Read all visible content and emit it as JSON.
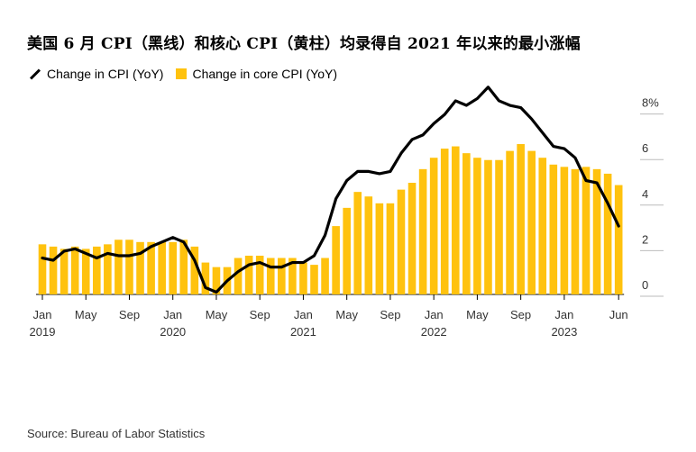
{
  "chart_data": {
    "type": "bar+line",
    "title": "美国 6 月 CPI（黑线）和核心 CPI（黄柱）均录得自 2021 年以来的最小涨幅",
    "legend": {
      "placement": "top-left",
      "line_label": "Change in CPI (YoY)",
      "bar_label": "Change in core CPI (YoY)"
    },
    "colors": {
      "bar": "#FFC20E",
      "line": "#000000"
    },
    "ylim": [
      0,
      9
    ],
    "y_ticks": [
      {
        "value": 0,
        "label": "0"
      },
      {
        "value": 2,
        "label": "2"
      },
      {
        "value": 4,
        "label": "4"
      },
      {
        "value": 6,
        "label": "6"
      },
      {
        "value": 8,
        "label": "8%"
      }
    ],
    "x_ticks": [
      {
        "month": "2019-01",
        "label": "Jan",
        "year": "2019"
      },
      {
        "month": "2019-05",
        "label": "May",
        "year": ""
      },
      {
        "month": "2019-09",
        "label": "Sep",
        "year": ""
      },
      {
        "month": "2020-01",
        "label": "Jan",
        "year": "2020"
      },
      {
        "month": "2020-05",
        "label": "May",
        "year": ""
      },
      {
        "month": "2020-09",
        "label": "Sep",
        "year": ""
      },
      {
        "month": "2021-01",
        "label": "Jan",
        "year": "2021"
      },
      {
        "month": "2021-05",
        "label": "May",
        "year": ""
      },
      {
        "month": "2021-09",
        "label": "Sep",
        "year": ""
      },
      {
        "month": "2022-01",
        "label": "Jan",
        "year": "2022"
      },
      {
        "month": "2022-05",
        "label": "May",
        "year": ""
      },
      {
        "month": "2022-09",
        "label": "Sep",
        "year": ""
      },
      {
        "month": "2023-01",
        "label": "Jan",
        "year": "2023"
      },
      {
        "month": "2023-06",
        "label": "Jun",
        "year": ""
      }
    ],
    "months": [
      "2019-01",
      "2019-02",
      "2019-03",
      "2019-04",
      "2019-05",
      "2019-06",
      "2019-07",
      "2019-08",
      "2019-09",
      "2019-10",
      "2019-11",
      "2019-12",
      "2020-01",
      "2020-02",
      "2020-03",
      "2020-04",
      "2020-05",
      "2020-06",
      "2020-07",
      "2020-08",
      "2020-09",
      "2020-10",
      "2020-11",
      "2020-12",
      "2021-01",
      "2021-02",
      "2021-03",
      "2021-04",
      "2021-05",
      "2021-06",
      "2021-07",
      "2021-08",
      "2021-09",
      "2021-10",
      "2021-11",
      "2021-12",
      "2022-01",
      "2022-02",
      "2022-03",
      "2022-04",
      "2022-05",
      "2022-06",
      "2022-07",
      "2022-08",
      "2022-09",
      "2022-10",
      "2022-11",
      "2022-12",
      "2023-01",
      "2023-02",
      "2023-03",
      "2023-04",
      "2023-05",
      "2023-06"
    ],
    "series": [
      {
        "name": "Change in CPI (YoY)",
        "kind": "line",
        "values": [
          1.6,
          1.5,
          1.9,
          2.0,
          1.8,
          1.6,
          1.8,
          1.7,
          1.7,
          1.8,
          2.1,
          2.3,
          2.5,
          2.3,
          1.5,
          0.3,
          0.1,
          0.6,
          1.0,
          1.3,
          1.4,
          1.2,
          1.2,
          1.4,
          1.4,
          1.7,
          2.6,
          4.2,
          5.0,
          5.4,
          5.4,
          5.3,
          5.4,
          6.2,
          6.8,
          7.0,
          7.5,
          7.9,
          8.5,
          8.3,
          8.6,
          9.1,
          8.5,
          8.3,
          8.2,
          7.7,
          7.1,
          6.5,
          6.4,
          6.0,
          5.0,
          4.9,
          4.0,
          3.0
        ]
      },
      {
        "name": "Change in core CPI (YoY)",
        "kind": "bar",
        "values": [
          2.2,
          2.1,
          2.0,
          2.1,
          2.0,
          2.1,
          2.2,
          2.4,
          2.4,
          2.3,
          2.3,
          2.3,
          2.3,
          2.4,
          2.1,
          1.4,
          1.2,
          1.2,
          1.6,
          1.7,
          1.7,
          1.6,
          1.6,
          1.6,
          1.4,
          1.3,
          1.6,
          3.0,
          3.8,
          4.5,
          4.3,
          4.0,
          4.0,
          4.6,
          4.9,
          5.5,
          6.0,
          6.4,
          6.5,
          6.2,
          6.0,
          5.9,
          5.9,
          6.3,
          6.6,
          6.3,
          6.0,
          5.7,
          5.6,
          5.5,
          5.6,
          5.5,
          5.3,
          4.8
        ]
      }
    ]
  },
  "source": "Source: Bureau of Labor Statistics"
}
